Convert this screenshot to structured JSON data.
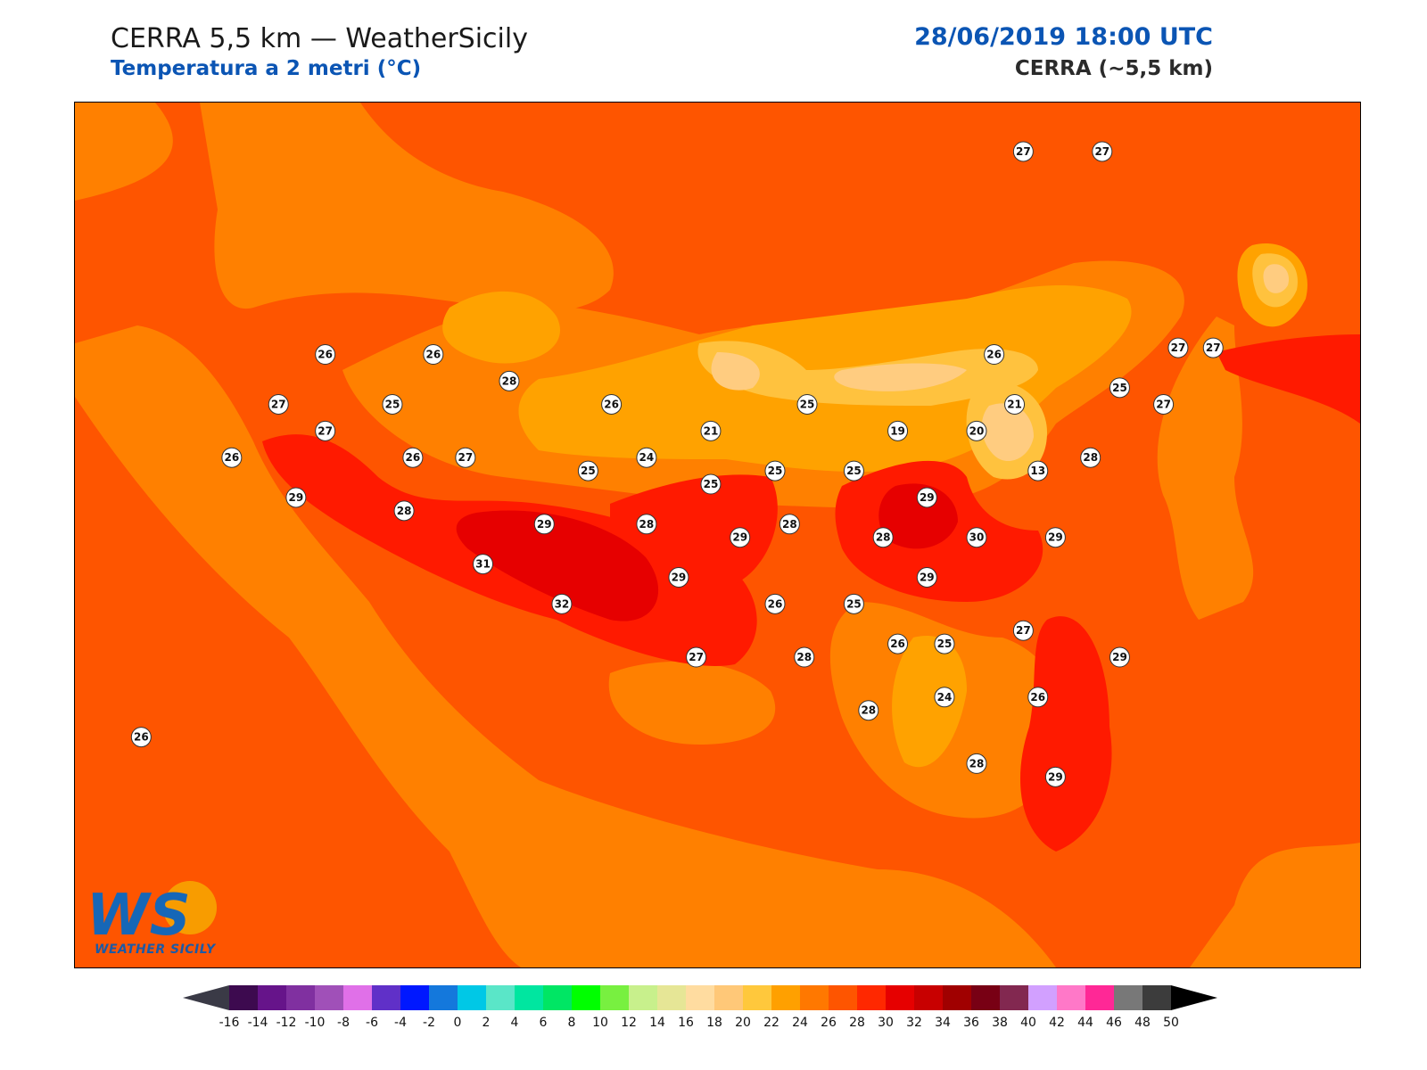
{
  "header": {
    "title": "CERRA 5,5 km — WeatherSicily",
    "subtitle": "Temperatura a 2 metri (°C)",
    "datetime": "28/06/2019 18:00 UTC",
    "model": "CERRA (~5,5 km)"
  },
  "logo": {
    "letters": "WS",
    "text": "WEATHER SICILY"
  },
  "colors": {
    "sea": "#fe5500",
    "band_24_26": "#ff8000",
    "band_22_24": "#ffa200",
    "band_20_22": "#ffc23e",
    "band_18_20": "#ffcc80",
    "band_30_32": "#ff1a00",
    "band_32_34": "#e60000"
  },
  "colorbar": {
    "ticks": [
      "-16",
      "-14",
      "-12",
      "-10",
      "-8",
      "-6",
      "-4",
      "-2",
      "0",
      "2",
      "4",
      "6",
      "8",
      "10",
      "12",
      "14",
      "16",
      "18",
      "20",
      "22",
      "24",
      "26",
      "28",
      "30",
      "32",
      "34",
      "36",
      "38",
      "40",
      "42",
      "44",
      "46",
      "48",
      "50"
    ],
    "colors": [
      "#3d0a4f",
      "#66148a",
      "#8030a0",
      "#a050b8",
      "#e070e8",
      "#6030c8",
      "#0018ff",
      "#1478dc",
      "#00c8e6",
      "#5ae6c8",
      "#00e6a0",
      "#00e664",
      "#00ff00",
      "#78f040",
      "#c8f08c",
      "#e6e696",
      "#ffdca0",
      "#ffc878",
      "#ffc83c",
      "#ffa000",
      "#ff7800",
      "#fe5500",
      "#ff2800",
      "#e60000",
      "#c80000",
      "#a00000",
      "#780014",
      "#822850",
      "#d2a0ff",
      "#ff78c8",
      "#ff2896",
      "#787878",
      "#3c3c3c"
    ],
    "under_color": "#3a3a46",
    "over_color": "#000000"
  },
  "stations": [
    {
      "label": "27",
      "lon": 14.95,
      "lat": 38.8
    },
    {
      "label": "27",
      "lon": 15.22,
      "lat": 38.8
    },
    {
      "label": "26",
      "lon": 12.56,
      "lat": 38.19
    },
    {
      "label": "26",
      "lon": 12.93,
      "lat": 38.19
    },
    {
      "label": "28",
      "lon": 13.19,
      "lat": 38.11
    },
    {
      "label": "26",
      "lon": 14.85,
      "lat": 38.19
    },
    {
      "label": "27",
      "lon": 15.48,
      "lat": 38.21
    },
    {
      "label": "27",
      "lon": 15.6,
      "lat": 38.21
    },
    {
      "label": "25",
      "lon": 15.28,
      "lat": 38.09
    },
    {
      "label": "27",
      "lon": 12.4,
      "lat": 38.04
    },
    {
      "label": "25",
      "lon": 12.79,
      "lat": 38.04
    },
    {
      "label": "26",
      "lon": 13.54,
      "lat": 38.04
    },
    {
      "label": "25",
      "lon": 14.21,
      "lat": 38.04
    },
    {
      "label": "21",
      "lon": 14.92,
      "lat": 38.04
    },
    {
      "label": "27",
      "lon": 15.43,
      "lat": 38.04
    },
    {
      "label": "27",
      "lon": 12.56,
      "lat": 37.96
    },
    {
      "label": "21",
      "lon": 13.88,
      "lat": 37.96
    },
    {
      "label": "19",
      "lon": 14.52,
      "lat": 37.96
    },
    {
      "label": "20",
      "lon": 14.79,
      "lat": 37.96
    },
    {
      "label": "28",
      "lon": 15.18,
      "lat": 37.88
    },
    {
      "label": "26",
      "lon": 12.24,
      "lat": 37.88
    },
    {
      "label": "26",
      "lon": 12.86,
      "lat": 37.88
    },
    {
      "label": "27",
      "lon": 13.04,
      "lat": 37.88
    },
    {
      "label": "24",
      "lon": 13.66,
      "lat": 37.88
    },
    {
      "label": "25",
      "lon": 13.46,
      "lat": 37.84
    },
    {
      "label": "25",
      "lon": 14.1,
      "lat": 37.84
    },
    {
      "label": "25",
      "lon": 14.37,
      "lat": 37.84
    },
    {
      "label": "13",
      "lon": 15.0,
      "lat": 37.84
    },
    {
      "label": "25",
      "lon": 13.88,
      "lat": 37.8
    },
    {
      "label": "29",
      "lon": 12.46,
      "lat": 37.76
    },
    {
      "label": "29",
      "lon": 14.62,
      "lat": 37.76
    },
    {
      "label": "28",
      "lon": 12.83,
      "lat": 37.72
    },
    {
      "label": "29",
      "lon": 13.31,
      "lat": 37.68
    },
    {
      "label": "28",
      "lon": 13.66,
      "lat": 37.68
    },
    {
      "label": "28",
      "lon": 14.15,
      "lat": 37.68
    },
    {
      "label": "29",
      "lon": 13.98,
      "lat": 37.64
    },
    {
      "label": "28",
      "lon": 14.47,
      "lat": 37.64
    },
    {
      "label": "30",
      "lon": 14.79,
      "lat": 37.64
    },
    {
      "label": "29",
      "lon": 15.06,
      "lat": 37.64
    },
    {
      "label": "31",
      "lon": 13.1,
      "lat": 37.56
    },
    {
      "label": "29",
      "lon": 13.77,
      "lat": 37.52
    },
    {
      "label": "29",
      "lon": 14.62,
      "lat": 37.52
    },
    {
      "label": "32",
      "lon": 13.37,
      "lat": 37.44
    },
    {
      "label": "26",
      "lon": 14.1,
      "lat": 37.44
    },
    {
      "label": "25",
      "lon": 14.37,
      "lat": 37.44
    },
    {
      "label": "27",
      "lon": 14.95,
      "lat": 37.36
    },
    {
      "label": "26",
      "lon": 14.52,
      "lat": 37.32
    },
    {
      "label": "25",
      "lon": 14.68,
      "lat": 37.32
    },
    {
      "label": "29",
      "lon": 15.28,
      "lat": 37.28
    },
    {
      "label": "27",
      "lon": 13.83,
      "lat": 37.28
    },
    {
      "label": "28",
      "lon": 14.2,
      "lat": 37.28
    },
    {
      "label": "24",
      "lon": 14.68,
      "lat": 37.16
    },
    {
      "label": "26",
      "lon": 15.0,
      "lat": 37.16
    },
    {
      "label": "28",
      "lon": 14.42,
      "lat": 37.12
    },
    {
      "label": "26",
      "lon": 11.93,
      "lat": 37.04
    },
    {
      "label": "28",
      "lon": 14.79,
      "lat": 36.96
    },
    {
      "label": "29",
      "lon": 15.06,
      "lat": 36.92
    }
  ]
}
